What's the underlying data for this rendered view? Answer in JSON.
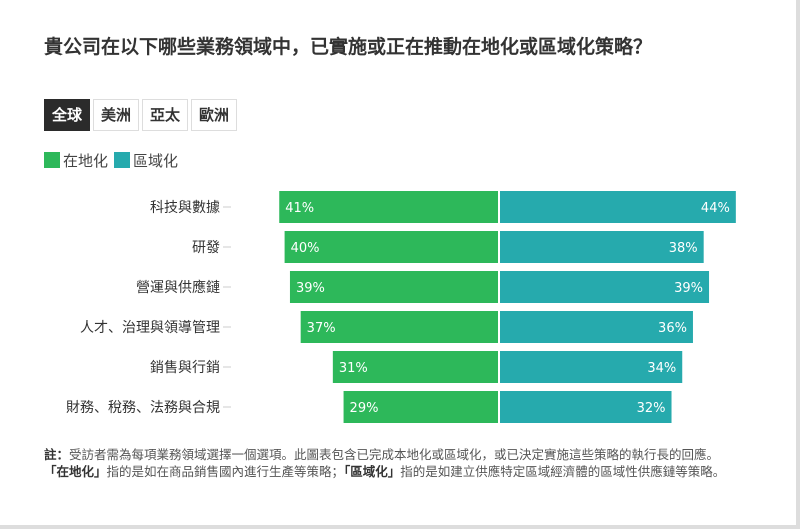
{
  "title": "貴公司在以下哪些業務領域中，已實施或正在推動在地化或區域化策略？",
  "tabs": [
    {
      "label": "全球",
      "active": true
    },
    {
      "label": "美洲"
    },
    {
      "label": "亞太"
    },
    {
      "label": "歐洲"
    }
  ],
  "colors": {
    "localization": "#2db85a",
    "regionalization": "#26aaad"
  },
  "chart_data": {
    "type": "bar",
    "orientation": "diverging-horizontal",
    "categories": [
      "科技與數據",
      "研發",
      "營運與供應鏈",
      "人才、治理與領導管理",
      "銷售與行銷",
      "財務、稅務、法務與合規"
    ],
    "series": [
      {
        "name": "在地化",
        "values": [
          41,
          40,
          39,
          37,
          31,
          29
        ],
        "color": "#2db85a"
      },
      {
        "name": "區域化",
        "values": [
          44,
          38,
          39,
          36,
          34,
          32
        ],
        "color": "#26aaad"
      }
    ],
    "unit": "%",
    "legend": "top-left"
  },
  "note": {
    "label": "註：",
    "text1": "受訪者需為每項業務領域選擇一個選項。此圖表包含已完成本地化或區域化，或已決定實施這些策略的執行長的回應。",
    "term1": "「在地化」",
    "def1": "指的是如在商品銷售國內進行生產等策略；",
    "term2": "「區域化」",
    "def2": "指的是如建立供應特定區域經濟體的區域性供應鏈等策略。"
  }
}
